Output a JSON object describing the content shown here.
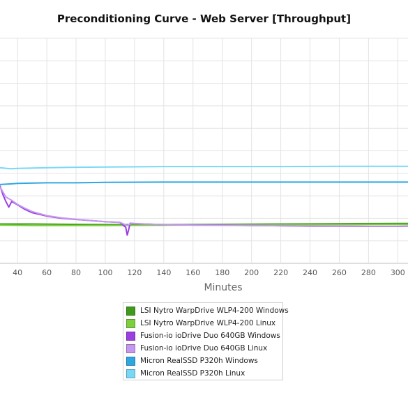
{
  "chart_data": {
    "type": "line",
    "title": "Preconditioning Curve - Web Server [Throughput]",
    "xlabel": "Minutes",
    "ylabel": "",
    "xlim": [
      28,
      307
    ],
    "ylim": [
      0,
      10
    ],
    "x_ticks": [
      40,
      60,
      80,
      100,
      120,
      140,
      160,
      180,
      200,
      220,
      240,
      260,
      280,
      300
    ],
    "y_ticks": [
      1,
      2,
      3,
      4,
      5,
      6,
      7,
      8,
      9,
      10
    ],
    "y_tick_labels_visible": false,
    "grid": true,
    "legend_position": "bottom",
    "series": [
      {
        "name": "LSI Nytro WarpDrive WLP4-200 Windows",
        "color": "#3f9a1c",
        "x": [
          28,
          50,
          100,
          150,
          200,
          250,
          300,
          307
        ],
        "y": [
          1.75,
          1.75,
          1.72,
          1.72,
          1.74,
          1.76,
          1.77,
          1.77
        ]
      },
      {
        "name": "LSI Nytro WarpDrive WLP4-200 Linux",
        "color": "#7dcf3c",
        "x": [
          28,
          50,
          100,
          150,
          200,
          250,
          300,
          307
        ],
        "y": [
          1.7,
          1.68,
          1.68,
          1.7,
          1.71,
          1.72,
          1.73,
          1.73
        ]
      },
      {
        "name": "Fusion-io ioDrive Duo 640GB Windows",
        "color": "#9b3fe0",
        "x": [
          28,
          30,
          32,
          34,
          36,
          40,
          45,
          50,
          60,
          70,
          80,
          90,
          100,
          110,
          114,
          115,
          116,
          117,
          118,
          120,
          130,
          140,
          150,
          160,
          180,
          200,
          220,
          240,
          260,
          280,
          300,
          307
        ],
        "y": [
          3.45,
          3.05,
          2.75,
          2.5,
          2.75,
          2.6,
          2.4,
          2.25,
          2.1,
          2.0,
          1.95,
          1.9,
          1.85,
          1.82,
          1.6,
          1.25,
          1.5,
          1.78,
          1.78,
          1.76,
          1.74,
          1.72,
          1.72,
          1.7,
          1.7,
          1.68,
          1.67,
          1.65,
          1.65,
          1.64,
          1.64,
          1.65
        ]
      },
      {
        "name": "Fusion-io ioDrive Duo 640GB Linux",
        "color": "#c598ef",
        "x": [
          28,
          32,
          36,
          40,
          45,
          50,
          60,
          70,
          80,
          90,
          100,
          110,
          115,
          118,
          120,
          130,
          140,
          150,
          160,
          180,
          200,
          220,
          240,
          260,
          280,
          300,
          307
        ],
        "y": [
          3.4,
          2.95,
          2.8,
          2.62,
          2.45,
          2.3,
          2.12,
          2.02,
          1.96,
          1.9,
          1.85,
          1.82,
          1.68,
          1.78,
          1.77,
          1.74,
          1.72,
          1.71,
          1.7,
          1.69,
          1.68,
          1.67,
          1.66,
          1.66,
          1.65,
          1.65,
          1.66
        ]
      },
      {
        "name": "Micron RealSSD P320h Windows",
        "color": "#2ea7e0",
        "x": [
          28,
          35,
          40,
          60,
          80,
          100,
          140,
          180,
          220,
          260,
          300,
          307
        ],
        "y": [
          3.5,
          3.53,
          3.55,
          3.58,
          3.58,
          3.6,
          3.61,
          3.61,
          3.61,
          3.61,
          3.61,
          3.61
        ]
      },
      {
        "name": "Micron RealSSD P320h Linux",
        "color": "#78d8f7",
        "x": [
          28,
          35,
          40,
          60,
          80,
          100,
          140,
          180,
          220,
          260,
          300,
          307
        ],
        "y": [
          4.25,
          4.2,
          4.22,
          4.25,
          4.27,
          4.28,
          4.3,
          4.3,
          4.3,
          4.31,
          4.31,
          4.31
        ]
      }
    ]
  }
}
